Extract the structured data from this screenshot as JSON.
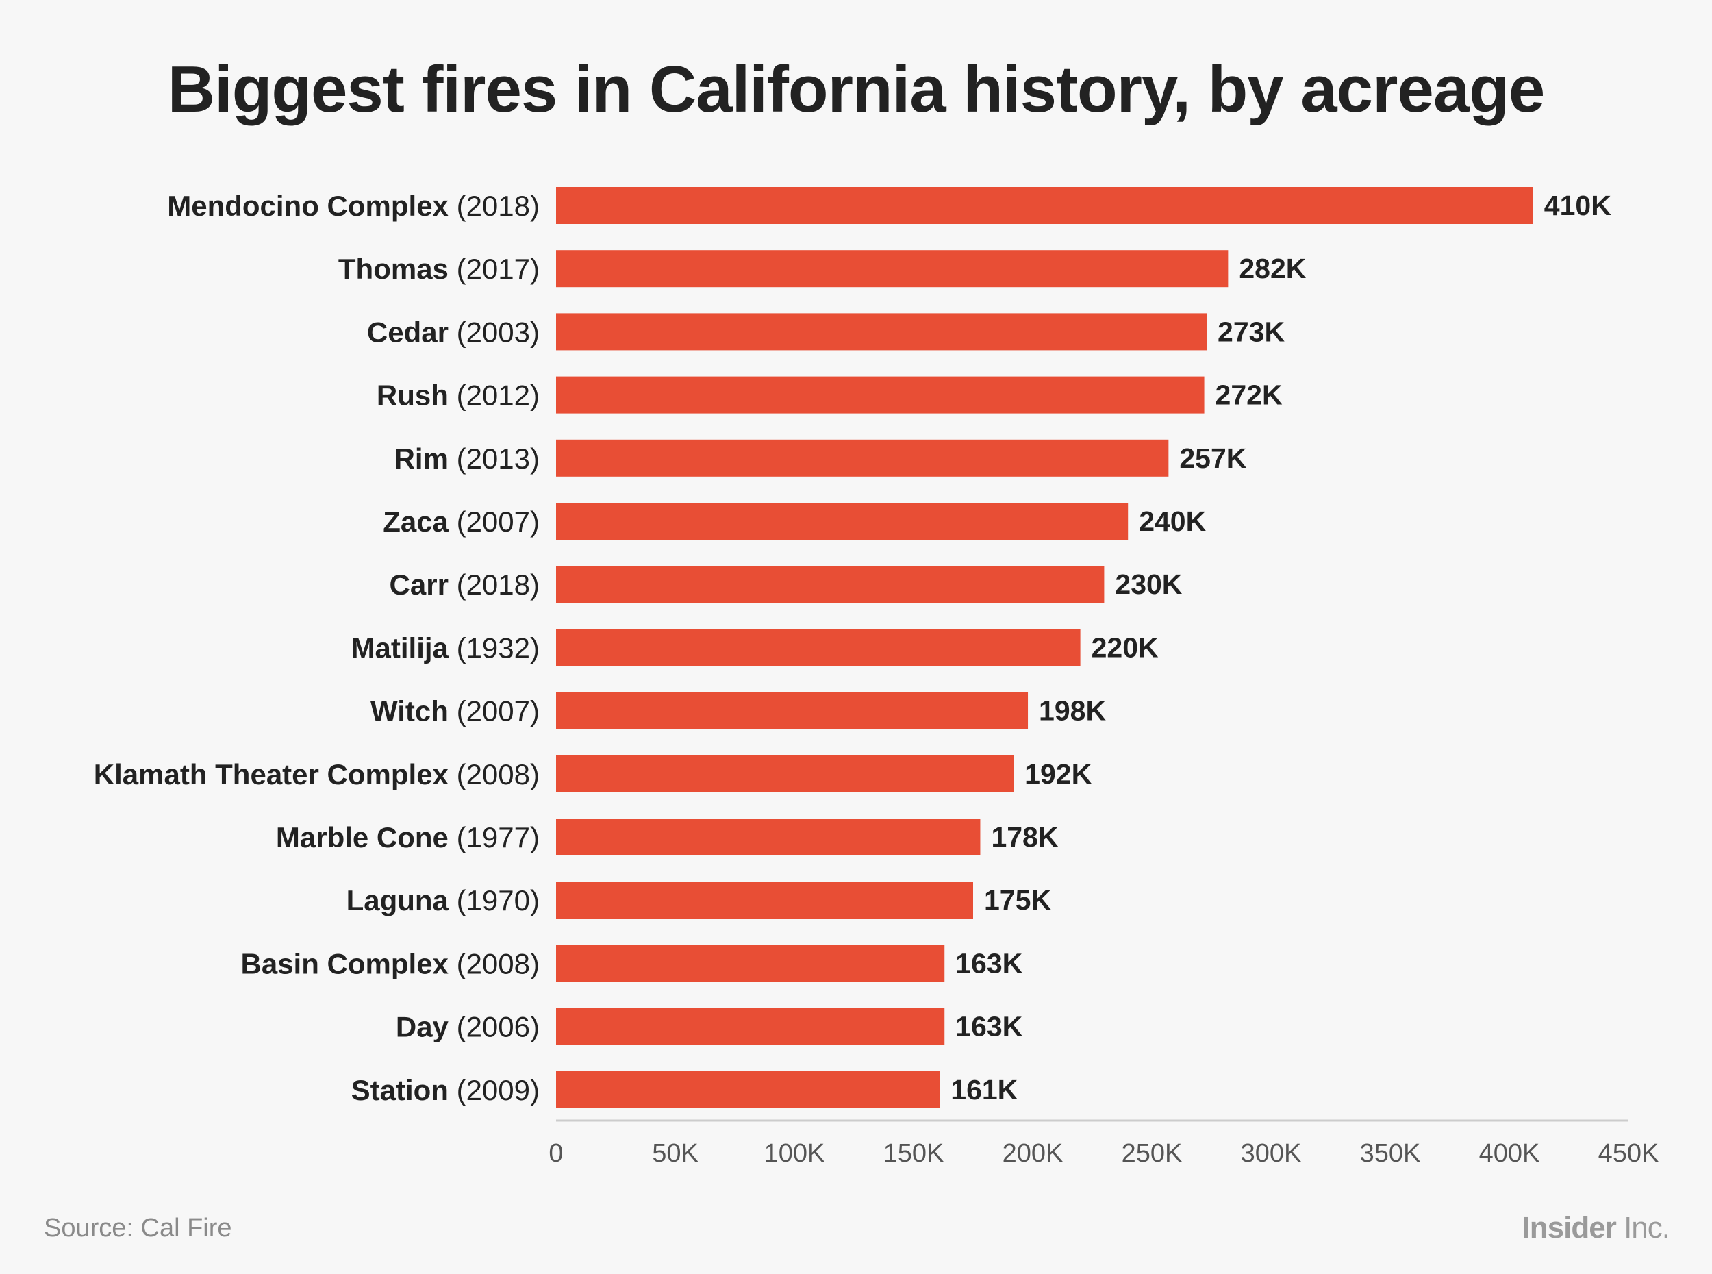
{
  "chart_data": {
    "type": "bar",
    "orientation": "horizontal",
    "title": "Biggest fires in California history, by acreage",
    "categories": [
      {
        "name": "Mendocino Complex",
        "year": "(2018)"
      },
      {
        "name": "Thomas",
        "year": "(2017)"
      },
      {
        "name": "Cedar",
        "year": "(2003)"
      },
      {
        "name": "Rush",
        "year": "(2012)"
      },
      {
        "name": "Rim",
        "year": "(2013)"
      },
      {
        "name": "Zaca",
        "year": "(2007)"
      },
      {
        "name": "Carr",
        "year": "(2018)"
      },
      {
        "name": "Matilija",
        "year": "(1932)"
      },
      {
        "name": "Witch",
        "year": "(2007)"
      },
      {
        "name": "Klamath Theater Complex",
        "year": "(2008)"
      },
      {
        "name": "Marble Cone",
        "year": "(1977)"
      },
      {
        "name": "Laguna",
        "year": "(1970)"
      },
      {
        "name": "Basin Complex",
        "year": "(2008)"
      },
      {
        "name": "Day",
        "year": "(2006)"
      },
      {
        "name": "Station",
        "year": "(2009)"
      }
    ],
    "values": [
      410000,
      282000,
      273000,
      272000,
      257000,
      240000,
      230000,
      220000,
      198000,
      192000,
      178000,
      175000,
      163000,
      163000,
      161000
    ],
    "value_labels": [
      "410K",
      "282K",
      "273K",
      "272K",
      "257K",
      "240K",
      "230K",
      "220K",
      "198K",
      "192K",
      "178K",
      "175K",
      "163K",
      "163K",
      "161K"
    ],
    "xlim": [
      0,
      450000
    ],
    "xticks": [
      0,
      50000,
      100000,
      150000,
      200000,
      250000,
      300000,
      350000,
      400000,
      450000
    ],
    "xtick_labels": [
      "0",
      "50K",
      "100K",
      "150K",
      "200K",
      "250K",
      "300K",
      "350K",
      "400K",
      "450K"
    ],
    "xlabel": "",
    "ylabel": "",
    "grid": false,
    "colors": {
      "bar": "#e84e35",
      "axis": "#cccccc",
      "text": "#222222",
      "tick_text": "#555555",
      "background": "#f7f7f7"
    }
  },
  "footer": {
    "source": "Source: Cal Fire",
    "brand_strong": "Insider",
    "brand_light": " Inc."
  }
}
